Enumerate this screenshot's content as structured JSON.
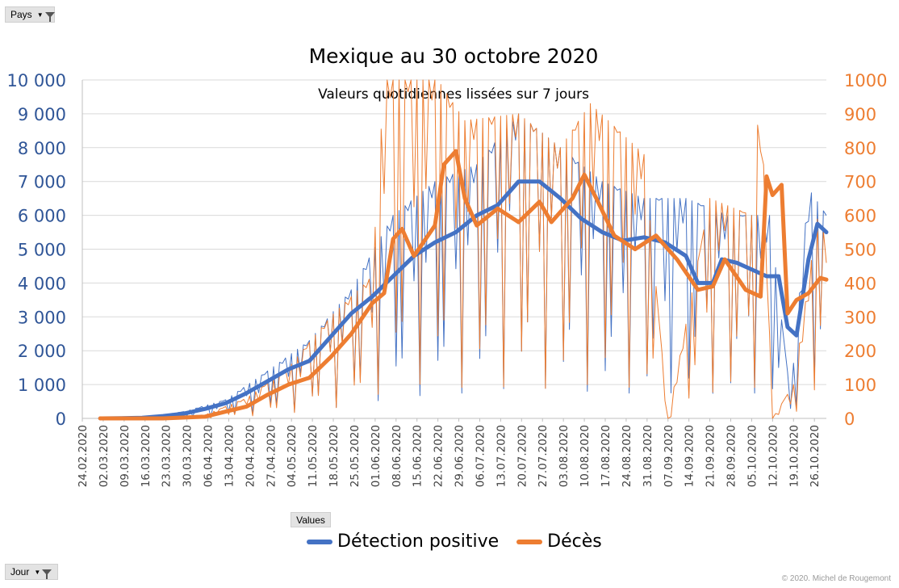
{
  "filters": {
    "pays_label": "Pays",
    "jour_label": "Jour",
    "values_label": "Values"
  },
  "copyright": "© 2020.  Michel de Rougemont",
  "colors": {
    "cases": "#4472c4",
    "deaths": "#ed7d31",
    "axis_left": "#2f5597",
    "axis_right": "#ed7d31"
  },
  "chart_data": {
    "type": "line",
    "title": "Mexique au 30 octobre 2020",
    "subtitle": "Valeurs quotidiennes lissées sur 7 jours",
    "y_left": {
      "range": [
        0,
        10000
      ],
      "ticks": [
        "0",
        "1 000",
        "2 000",
        "3 000",
        "4 000",
        "5 000",
        "6 000",
        "7 000",
        "8 000",
        "9 000",
        "10 000"
      ]
    },
    "y_right": {
      "range": [
        0,
        1000
      ],
      "ticks": [
        "0",
        "100",
        "200",
        "300",
        "400",
        "500",
        "600",
        "700",
        "800",
        "900",
        "1000"
      ]
    },
    "x_range": [
      "2020-02-24",
      "2020-10-30"
    ],
    "x_ticks": [
      "24.02.2020",
      "02.03.2020",
      "09.03.2020",
      "16.03.2020",
      "23.03.2020",
      "30.03.2020",
      "06.04.2020",
      "13.04.2020",
      "20.04.2020",
      "27.04.2020",
      "04.05.2020",
      "11.05.2020",
      "18.05.2020",
      "25.05.2020",
      "01.06.2020",
      "08.06.2020",
      "15.06.2020",
      "22.06.2020",
      "29.06.2020",
      "06.07.2020",
      "13.07.2020",
      "20.07.2020",
      "27.07.2020",
      "03.08.2020",
      "10.08.2020",
      "17.08.2020",
      "24.08.2020",
      "31.08.2020",
      "07.09.2020",
      "14.09.2020",
      "21.09.2020",
      "28.09.2020",
      "05.10.2020",
      "12.10.2020",
      "19.10.2020",
      "26.10.2020"
    ],
    "grid": true,
    "legend_position": "bottom",
    "legend": [
      "Détection positive",
      "Décès"
    ],
    "series": [
      {
        "name": "Détection positive",
        "axis": "left",
        "smoothed": [
          [
            "2020-03-01",
            0
          ],
          [
            "2020-03-08",
            5
          ],
          [
            "2020-03-15",
            20
          ],
          [
            "2020-03-22",
            70
          ],
          [
            "2020-03-29",
            140
          ],
          [
            "2020-04-05",
            280
          ],
          [
            "2020-04-12",
            450
          ],
          [
            "2020-04-19",
            750
          ],
          [
            "2020-04-26",
            1100
          ],
          [
            "2020-05-03",
            1450
          ],
          [
            "2020-05-10",
            1700
          ],
          [
            "2020-05-17",
            2400
          ],
          [
            "2020-05-24",
            3100
          ],
          [
            "2020-05-31",
            3600
          ],
          [
            "2020-06-07",
            4200
          ],
          [
            "2020-06-14",
            4800
          ],
          [
            "2020-06-21",
            5200
          ],
          [
            "2020-06-28",
            5500
          ],
          [
            "2020-07-05",
            6000
          ],
          [
            "2020-07-12",
            6300
          ],
          [
            "2020-07-19",
            7000
          ],
          [
            "2020-07-26",
            7000
          ],
          [
            "2020-08-02",
            6500
          ],
          [
            "2020-08-09",
            5900
          ],
          [
            "2020-08-16",
            5500
          ],
          [
            "2020-08-23",
            5250
          ],
          [
            "2020-08-30",
            5350
          ],
          [
            "2020-09-06",
            5200
          ],
          [
            "2020-09-13",
            4800
          ],
          [
            "2020-09-17",
            4000
          ],
          [
            "2020-09-22",
            4000
          ],
          [
            "2020-09-25",
            4700
          ],
          [
            "2020-09-30",
            4600
          ],
          [
            "2020-10-05",
            4400
          ],
          [
            "2020-10-10",
            4200
          ],
          [
            "2020-10-14",
            4200
          ],
          [
            "2020-10-17",
            2700
          ],
          [
            "2020-10-20",
            2450
          ],
          [
            "2020-10-24",
            4700
          ],
          [
            "2020-10-27",
            5750
          ],
          [
            "2020-10-30",
            5500
          ]
        ],
        "daily": [
          [
            "2020-03-01",
            0
          ],
          [
            "2020-03-15",
            20
          ],
          [
            "2020-03-29",
            200
          ],
          [
            "2020-04-12",
            550
          ],
          [
            "2020-04-26",
            1400
          ],
          [
            "2020-05-10",
            2300
          ],
          [
            "2020-05-24",
            3800
          ],
          [
            "2020-06-07",
            6000
          ],
          [
            "2020-06-21",
            7000
          ],
          [
            "2020-07-05",
            7500
          ],
          [
            "2020-07-19",
            9000
          ],
          [
            "2020-08-02",
            8000
          ],
          [
            "2020-08-16",
            7000
          ],
          [
            "2020-08-30",
            6500
          ],
          [
            "2020-09-13",
            6500
          ],
          [
            "2020-09-27",
            6000
          ],
          [
            "2020-10-11",
            6000
          ],
          [
            "2020-10-18",
            600
          ],
          [
            "2020-10-24",
            6800
          ],
          [
            "2020-10-30",
            6000
          ]
        ]
      },
      {
        "name": "Décès",
        "axis": "right",
        "smoothed": [
          [
            "2020-03-01",
            0
          ],
          [
            "2020-03-22",
            0
          ],
          [
            "2020-04-05",
            5
          ],
          [
            "2020-04-12",
            20
          ],
          [
            "2020-04-19",
            35
          ],
          [
            "2020-04-26",
            70
          ],
          [
            "2020-05-03",
            100
          ],
          [
            "2020-05-10",
            120
          ],
          [
            "2020-05-17",
            180
          ],
          [
            "2020-05-24",
            250
          ],
          [
            "2020-05-31",
            340
          ],
          [
            "2020-06-04",
            370
          ],
          [
            "2020-06-07",
            530
          ],
          [
            "2020-06-10",
            560
          ],
          [
            "2020-06-14",
            480
          ],
          [
            "2020-06-21",
            570
          ],
          [
            "2020-06-24",
            750
          ],
          [
            "2020-06-28",
            790
          ],
          [
            "2020-07-01",
            650
          ],
          [
            "2020-07-05",
            570
          ],
          [
            "2020-07-12",
            620
          ],
          [
            "2020-07-19",
            580
          ],
          [
            "2020-07-26",
            640
          ],
          [
            "2020-07-30",
            580
          ],
          [
            "2020-08-06",
            650
          ],
          [
            "2020-08-10",
            720
          ],
          [
            "2020-08-14",
            650
          ],
          [
            "2020-08-20",
            540
          ],
          [
            "2020-08-27",
            500
          ],
          [
            "2020-09-03",
            540
          ],
          [
            "2020-09-10",
            470
          ],
          [
            "2020-09-17",
            380
          ],
          [
            "2020-09-22",
            390
          ],
          [
            "2020-09-26",
            470
          ],
          [
            "2020-10-03",
            380
          ],
          [
            "2020-10-08",
            360
          ],
          [
            "2020-10-10",
            715
          ],
          [
            "2020-10-12",
            660
          ],
          [
            "2020-10-15",
            690
          ],
          [
            "2020-10-17",
            310
          ],
          [
            "2020-10-20",
            350
          ],
          [
            "2020-10-24",
            370
          ],
          [
            "2020-10-28",
            415
          ],
          [
            "2020-10-30",
            410
          ]
        ],
        "daily": [
          [
            "2020-03-01",
            0
          ],
          [
            "2020-04-05",
            10
          ],
          [
            "2020-04-19",
            60
          ],
          [
            "2020-05-03",
            150
          ],
          [
            "2020-05-17",
            300
          ],
          [
            "2020-05-31",
            420
          ],
          [
            "2020-06-04",
            1000
          ],
          [
            "2020-06-22",
            1000
          ],
          [
            "2020-07-01",
            880
          ],
          [
            "2020-07-19",
            900
          ],
          [
            "2020-08-02",
            800
          ],
          [
            "2020-08-12",
            930
          ],
          [
            "2020-08-30",
            780
          ],
          [
            "2020-09-07",
            0
          ],
          [
            "2020-09-21",
            650
          ],
          [
            "2020-10-05",
            600
          ],
          [
            "2020-10-08",
            1000
          ],
          [
            "2020-10-12",
            0
          ],
          [
            "2020-10-19",
            100
          ],
          [
            "2020-10-28",
            650
          ],
          [
            "2020-10-30",
            460
          ]
        ]
      }
    ]
  }
}
